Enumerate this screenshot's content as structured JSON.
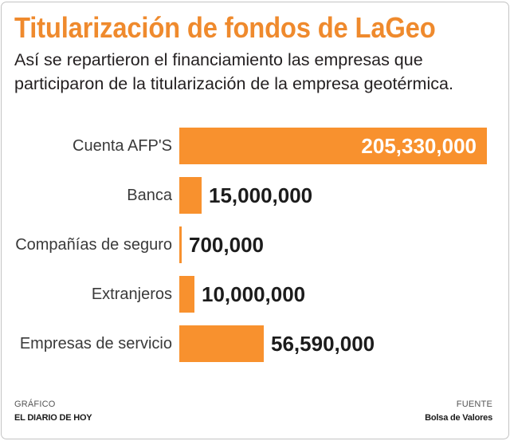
{
  "colors": {
    "title": "#ef8a2d",
    "bar": "#f8912e",
    "text": "#231f20",
    "border": "#c4c4c4"
  },
  "chart_data": {
    "type": "bar",
    "horizontal": true,
    "title": "Titularización de fondos de LaGeo",
    "subtitle": [
      "Así se repartieron el financiamiento las empresas que",
      "participaron de la titularización de la empresa geotérmica."
    ],
    "categories": [
      "Cuenta AFP'S",
      "Banca",
      "Compañías de seguro",
      "Extranjeros",
      "Empresas de servicio"
    ],
    "values": [
      205330000,
      15000000,
      700000,
      10000000,
      56590000
    ],
    "data_labels": [
      "205,330,000",
      "15,000,000",
      "700,000",
      "10,000,000",
      "56,590,000"
    ],
    "xlim": [
      0,
      205330000
    ],
    "grid": false,
    "axes_visible": false,
    "legend": false
  },
  "footer": {
    "credit_label": "GRÁFICO",
    "credit": "EL DIARIO DE HOY",
    "source_label": "FUENTE",
    "source": "Bolsa de Valores"
  }
}
